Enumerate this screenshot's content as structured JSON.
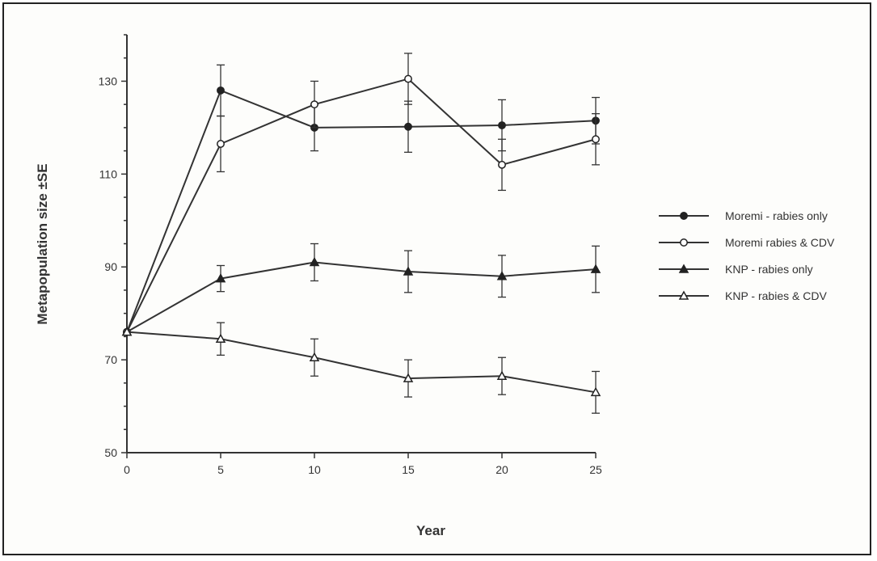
{
  "chart_data": {
    "type": "line",
    "title": "",
    "xlabel": "Year",
    "ylabel": "Metapopulation  size  ±SE",
    "x": [
      0,
      5,
      10,
      15,
      20,
      25
    ],
    "xlim": [
      0,
      25
    ],
    "ylim": [
      50,
      140
    ],
    "xticks": [
      0,
      5,
      10,
      15,
      20,
      25
    ],
    "yticks": [
      50,
      70,
      90,
      110,
      130
    ],
    "grid": false,
    "legend_position": "right",
    "series": [
      {
        "name": "Moremi - rabies only",
        "marker": "filled-circle",
        "color": "#333333",
        "values": [
          76,
          128,
          120,
          120.2,
          120.5,
          121.5
        ],
        "error": [
          0,
          5.5,
          5,
          5.5,
          5.5,
          5
        ]
      },
      {
        "name": "Moremi rabies & CDV",
        "marker": "open-circle",
        "color": "#333333",
        "values": [
          76,
          116.5,
          125,
          130.5,
          112,
          117.5
        ],
        "error": [
          0,
          6,
          5,
          5.5,
          5.5,
          5.5
        ]
      },
      {
        "name": "KNP - rabies only",
        "marker": "filled-triangle",
        "color": "#333333",
        "values": [
          76,
          87.5,
          91,
          89,
          88,
          89.5
        ],
        "error": [
          0,
          2.8,
          4,
          4.5,
          4.5,
          5
        ]
      },
      {
        "name": "KNP - rabies & CDV",
        "marker": "open-triangle",
        "color": "#333333",
        "values": [
          76,
          74.5,
          70.5,
          66,
          66.5,
          63
        ],
        "error": [
          0,
          3.5,
          4,
          4,
          4,
          4.5
        ]
      }
    ]
  }
}
